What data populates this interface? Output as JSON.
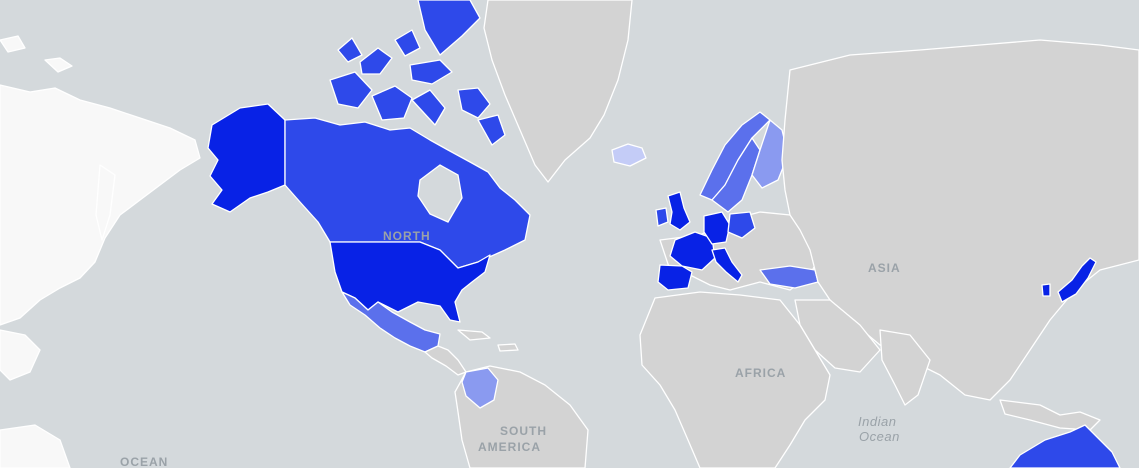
{
  "map": {
    "colors": {
      "water": "#d4d9dc",
      "land_no_data": "#d3d3d3",
      "land_light": "#f8f8f8",
      "level_1": "#c4ccf7",
      "level_2": "#8a9af0",
      "level_3": "#5b70ec",
      "level_4": "#2e49ea",
      "level_5": "#0822e6"
    },
    "labels": {
      "north_america": "NORTH",
      "south_america_1": "SOUTH",
      "south_america_2": "AMERICA",
      "asia": "ASIA",
      "africa": "AFRICA",
      "indian_ocean_1": "Indian",
      "indian_ocean_2": "Ocean",
      "pacific_ocean": "OCEAN"
    },
    "regions": [
      {
        "name": "alaska",
        "level": "level_5"
      },
      {
        "name": "canada",
        "level": "level_4"
      },
      {
        "name": "united-states",
        "level": "level_5"
      },
      {
        "name": "mexico",
        "level": "level_3"
      },
      {
        "name": "colombia",
        "level": "level_2"
      },
      {
        "name": "greenland",
        "level": "land_no_data"
      },
      {
        "name": "iceland",
        "level": "level_1"
      },
      {
        "name": "united-kingdom",
        "level": "level_5"
      },
      {
        "name": "ireland",
        "level": "level_4"
      },
      {
        "name": "france",
        "level": "level_5"
      },
      {
        "name": "spain",
        "level": "level_5"
      },
      {
        "name": "germany",
        "level": "level_5"
      },
      {
        "name": "italy",
        "level": "level_5"
      },
      {
        "name": "norway",
        "level": "level_3"
      },
      {
        "name": "sweden",
        "level": "level_3"
      },
      {
        "name": "finland",
        "level": "level_2"
      },
      {
        "name": "poland",
        "level": "level_4"
      },
      {
        "name": "turkey",
        "level": "level_3"
      },
      {
        "name": "japan",
        "level": "level_5"
      },
      {
        "name": "australia",
        "level": "level_4"
      }
    ]
  }
}
